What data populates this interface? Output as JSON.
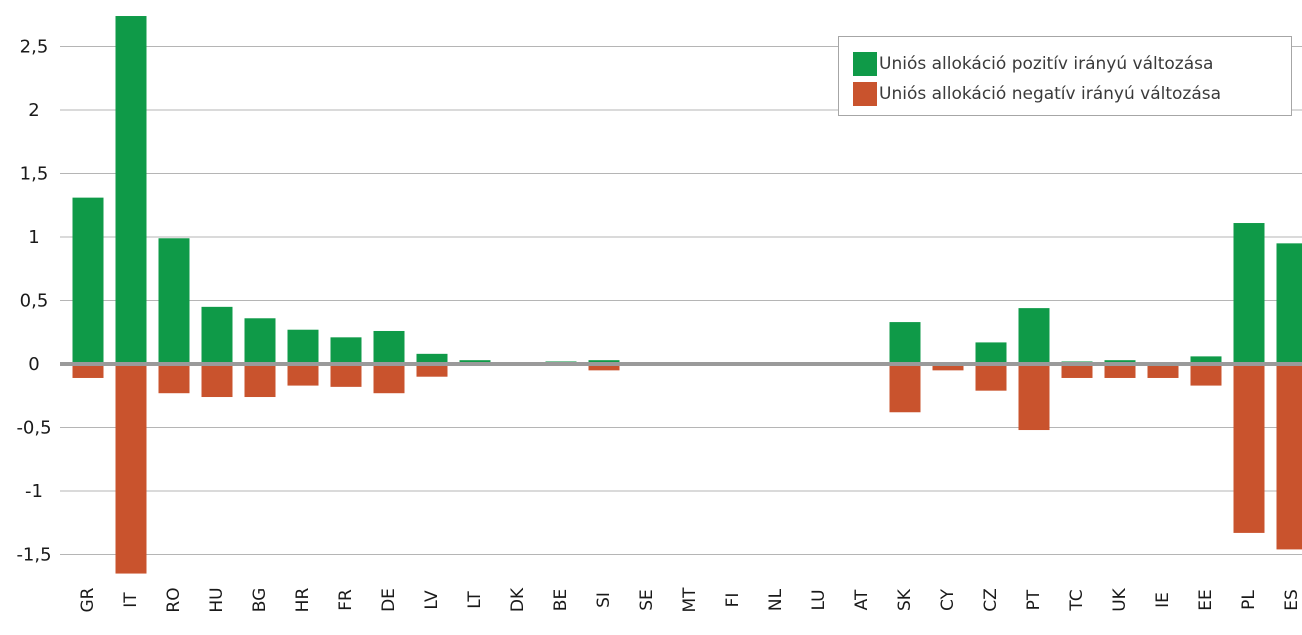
{
  "colors": {
    "positive": "#0f9a48",
    "negative": "#c9532d",
    "grid": "#b5b5b5",
    "zero": "#9a9a9a"
  },
  "chart_data": {
    "type": "bar",
    "title": "",
    "xlabel": "",
    "ylabel": "",
    "ylim": [
      -1.7,
      2.75
    ],
    "yticks": [
      2.5,
      2,
      1.5,
      1,
      0.5,
      0,
      -0.5,
      -1,
      -1.5
    ],
    "ytick_labels": [
      "2,5",
      "2",
      "1,5",
      "1",
      "0,5",
      "0",
      "-0,5",
      "-1",
      "-1,5"
    ],
    "grid": true,
    "legend_position": "top-right",
    "categories": [
      "GR",
      "IT",
      "RO",
      "HU",
      "BG",
      "HR",
      "FR",
      "DE",
      "LV",
      "LT",
      "DK",
      "BE",
      "SI",
      "SE",
      "MT",
      "FI",
      "NL",
      "LU",
      "AT",
      "SK",
      "CY",
      "CZ",
      "PT",
      "TC",
      "UK",
      "IE",
      "EE",
      "PL",
      "ES"
    ],
    "series": [
      {
        "name": "Uniós allokáció pozitív irányú változása",
        "color": "#0f9a48",
        "values": [
          1.31,
          2.74,
          0.99,
          0.45,
          0.36,
          0.27,
          0.21,
          0.26,
          0.08,
          0.03,
          0.0,
          0.02,
          0.03,
          0.0,
          0.0,
          0.0,
          0.0,
          0.0,
          0.0,
          0.33,
          0.0,
          0.17,
          0.44,
          0.02,
          0.03,
          0.0,
          0.06,
          1.11,
          0.95
        ]
      },
      {
        "name": "Uniós allokáció negatív irányú változása",
        "color": "#c9532d",
        "values": [
          -0.11,
          -1.65,
          -0.23,
          -0.26,
          -0.26,
          -0.17,
          -0.18,
          -0.23,
          -0.1,
          0.0,
          0.0,
          0.0,
          -0.05,
          0.0,
          0.0,
          0.0,
          0.0,
          0.0,
          0.0,
          -0.38,
          -0.05,
          -0.21,
          -0.52,
          -0.11,
          -0.11,
          -0.11,
          -0.17,
          -1.33,
          -1.46
        ]
      }
    ]
  },
  "legend": {
    "positive_label": "Uniós allokáció pozitív irányú változása",
    "negative_label": "Uniós allokáció negatív irányú változása"
  }
}
